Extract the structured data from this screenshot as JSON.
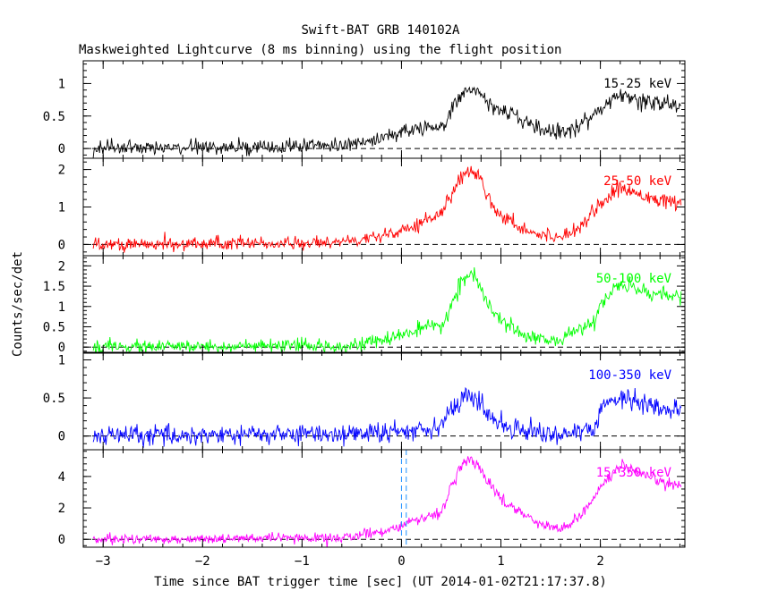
{
  "chart_data": {
    "type": "line",
    "title": "Swift-BAT GRB 140102A",
    "subtitle": "Maskweighted Lightcurve (8 ms binning) using the flight position",
    "xlabel": "Time since BAT trigger time [sec] (UT 2014-01-02T21:17:37.8)",
    "ylabel": "Counts/sec/det",
    "xlim": [
      -3.2,
      2.85
    ],
    "x_ticks": [
      "−3",
      "−2",
      "−1",
      "0",
      "1",
      "2"
    ],
    "x_tick_values": [
      -3,
      -2,
      -1,
      0,
      1,
      2
    ],
    "trigger_marker_x": [
      0.0,
      0.048
    ],
    "panels": [
      {
        "band": "15-25 keV",
        "color": "#000000",
        "ylim": [
          -0.15,
          1.35
        ],
        "y_ticks": [
          "0",
          "0.5",
          "1"
        ],
        "y_tick_values": [
          0,
          0.5,
          1
        ],
        "noise": 0.055,
        "profile": {
          "x": [
            -3.2,
            -1.5,
            -0.6,
            -0.2,
            0.0,
            0.2,
            0.4,
            0.5,
            0.6,
            0.7,
            0.8,
            0.9,
            1.0,
            1.2,
            1.4,
            1.6,
            1.8,
            2.0,
            2.2,
            2.4,
            2.6,
            2.85
          ],
          "y": [
            0.0,
            0.02,
            0.05,
            0.15,
            0.25,
            0.32,
            0.3,
            0.55,
            0.85,
            0.95,
            0.85,
            0.65,
            0.6,
            0.45,
            0.3,
            0.25,
            0.35,
            0.6,
            0.85,
            0.75,
            0.7,
            0.65
          ]
        }
      },
      {
        "band": "25-50 keV",
        "color": "#ff0000",
        "ylim": [
          -0.3,
          2.3
        ],
        "y_ticks": [
          "0",
          "1",
          "2"
        ],
        "y_tick_values": [
          0,
          1,
          2
        ],
        "noise": 0.085,
        "profile": {
          "x": [
            -3.2,
            -1.5,
            -0.6,
            -0.2,
            0.0,
            0.2,
            0.4,
            0.5,
            0.6,
            0.7,
            0.8,
            0.9,
            1.0,
            1.2,
            1.4,
            1.6,
            1.8,
            2.0,
            2.2,
            2.4,
            2.6,
            2.85
          ],
          "y": [
            0.0,
            0.02,
            0.05,
            0.25,
            0.4,
            0.6,
            0.85,
            1.3,
            1.8,
            2.0,
            1.75,
            1.1,
            0.8,
            0.45,
            0.25,
            0.2,
            0.5,
            1.1,
            1.5,
            1.35,
            1.2,
            1.0
          ]
        }
      },
      {
        "band": "50-100 keV",
        "color": "#00ff00",
        "ylim": [
          -0.15,
          2.25
        ],
        "y_ticks": [
          "0",
          "0.5",
          "1",
          "1.5",
          "2"
        ],
        "y_tick_values": [
          0,
          0.5,
          1,
          1.5,
          2
        ],
        "noise": 0.08,
        "profile": {
          "x": [
            -3.2,
            -1.5,
            -0.6,
            -0.2,
            0.0,
            0.2,
            0.4,
            0.5,
            0.6,
            0.7,
            0.8,
            0.9,
            1.0,
            1.2,
            1.4,
            1.6,
            1.8,
            1.95,
            2.0,
            2.2,
            2.4,
            2.6,
            2.85
          ],
          "y": [
            0.0,
            0.02,
            0.03,
            0.15,
            0.3,
            0.45,
            0.5,
            1.0,
            1.6,
            1.85,
            1.4,
            0.9,
            0.65,
            0.35,
            0.2,
            0.15,
            0.5,
            0.55,
            1.1,
            1.55,
            1.4,
            1.3,
            1.2
          ]
        }
      },
      {
        "band": "100-350 keV",
        "color": "#0000ff",
        "ylim": [
          -0.18,
          1.1
        ],
        "y_ticks": [
          "0",
          "0.5",
          "1"
        ],
        "y_tick_values": [
          0,
          0.5,
          1
        ],
        "noise": 0.065,
        "profile": {
          "x": [
            -3.2,
            -1.5,
            -0.6,
            -0.2,
            0.0,
            0.2,
            0.4,
            0.5,
            0.6,
            0.7,
            0.8,
            0.9,
            1.0,
            1.2,
            1.4,
            1.6,
            1.8,
            1.95,
            2.05,
            2.2,
            2.4,
            2.6,
            2.85
          ],
          "y": [
            0.0,
            0.02,
            0.03,
            0.04,
            0.06,
            0.1,
            0.15,
            0.35,
            0.45,
            0.55,
            0.4,
            0.25,
            0.15,
            0.1,
            0.05,
            0.02,
            0.05,
            0.1,
            0.45,
            0.5,
            0.45,
            0.35,
            0.3
          ]
        }
      },
      {
        "band": "15-350 keV",
        "color": "#ff00ff",
        "ylim": [
          -0.5,
          5.7
        ],
        "y_ticks": [
          "0",
          "2",
          "4"
        ],
        "y_tick_values": [
          0,
          2,
          4
        ],
        "noise": 0.15,
        "profile": {
          "x": [
            -3.2,
            -1.5,
            -0.6,
            -0.2,
            0.0,
            0.2,
            0.4,
            0.5,
            0.6,
            0.7,
            0.8,
            0.9,
            1.0,
            1.2,
            1.4,
            1.6,
            1.8,
            2.0,
            2.2,
            2.4,
            2.6,
            2.85
          ],
          "y": [
            0.0,
            0.05,
            0.1,
            0.5,
            0.9,
            1.3,
            1.8,
            3.2,
            4.6,
            5.2,
            4.4,
            3.4,
            2.6,
            1.7,
            1.0,
            0.6,
            1.5,
            3.3,
            4.7,
            4.1,
            3.7,
            3.3
          ]
        }
      }
    ]
  }
}
